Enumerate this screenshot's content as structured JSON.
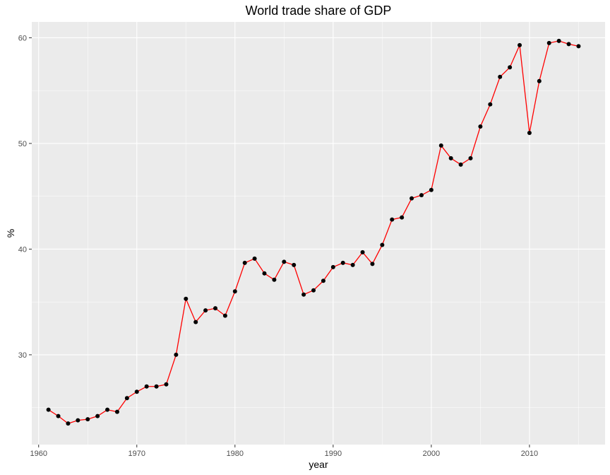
{
  "chart_data": {
    "type": "line",
    "title": "World trade share of GDP",
    "xlabel": "year",
    "ylabel": "%",
    "xlim": [
      1959.3,
      2017.7
    ],
    "ylim": [
      21.5,
      61.5
    ],
    "xticks": [
      1960,
      1970,
      1980,
      1990,
      2000,
      2010
    ],
    "yticks": [
      30,
      40,
      50,
      60
    ],
    "grid": true,
    "legend": "none",
    "line_color": "#ff0000",
    "point_color": "#000000",
    "panel_background": "#ebebeb",
    "grid_color": "#ffffff",
    "series": [
      {
        "x": [
          1961,
          1962,
          1963,
          1964,
          1965,
          1966,
          1967,
          1968,
          1969,
          1970,
          1971,
          1972,
          1973,
          1974,
          1975,
          1976,
          1977,
          1978,
          1979,
          1980,
          1981,
          1982,
          1983,
          1984,
          1985,
          1986,
          1987,
          1988,
          1989,
          1990,
          1991,
          1992,
          1993,
          1994,
          1995,
          1996,
          1997,
          1998,
          1999,
          2000,
          2001,
          2002,
          2003,
          2004,
          2005,
          2006,
          2007,
          2008,
          2009,
          2010,
          2011,
          2012,
          2013,
          2014,
          2015
        ],
        "y": [
          24.8,
          24.2,
          23.5,
          23.8,
          23.9,
          24.2,
          24.8,
          24.6,
          25.9,
          26.5,
          27.0,
          27.0,
          27.2,
          30.0,
          35.3,
          33.1,
          34.2,
          34.4,
          33.7,
          36.0,
          38.7,
          39.1,
          37.7,
          37.1,
          38.8,
          38.5,
          35.7,
          36.1,
          37.0,
          38.3,
          38.7,
          38.5,
          39.7,
          38.6,
          40.4,
          42.8,
          43.0,
          44.8,
          45.1,
          45.6,
          49.8,
          48.6,
          48.0,
          48.6,
          51.6,
          53.7,
          56.3,
          57.2,
          59.3,
          51.0,
          55.9,
          59.5,
          59.7,
          59.4,
          59.2
        ]
      }
    ]
  }
}
